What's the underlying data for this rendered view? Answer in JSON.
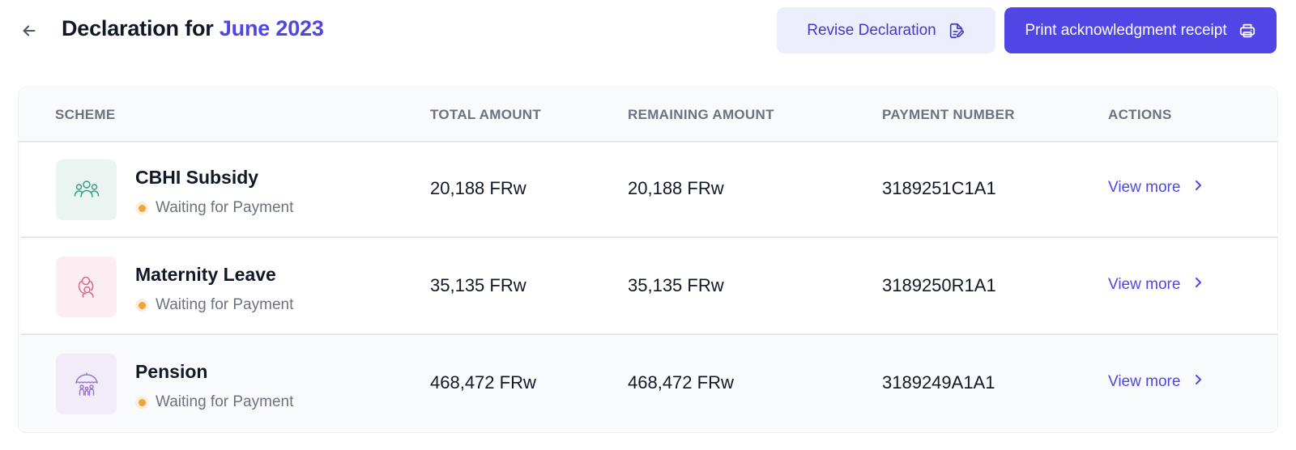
{
  "header": {
    "title_prefix": "Declaration for",
    "title_period": "June 2023",
    "revise_label": "Revise Declaration",
    "print_label": "Print acknowledgment receipt"
  },
  "table": {
    "columns": {
      "scheme": "SCHEME",
      "total": "TOTAL AMOUNT",
      "remaining": "REMAINING AMOUNT",
      "payment": "PAYMENT NUMBER",
      "actions": "ACTIONS"
    },
    "rows": [
      {
        "scheme": "CBHI Subsidy",
        "icon": "people-group-icon",
        "icon_bg": "#eaf5f2",
        "icon_color": "#3c9b82",
        "status": "Waiting for Payment",
        "total": "20,188 FRw",
        "remaining": "20,188 FRw",
        "payment_number": "3189251C1A1",
        "action": "View more"
      },
      {
        "scheme": "Maternity Leave",
        "icon": "mother-baby-icon",
        "icon_bg": "#fcedf3",
        "icon_color": "#d9678f",
        "status": "Waiting for Payment",
        "total": "35,135 FRw",
        "remaining": "35,135 FRw",
        "payment_number": "3189250R1A1",
        "action": "View more"
      },
      {
        "scheme": "Pension",
        "icon": "umbrella-family-icon",
        "icon_bg": "#f1ecf8",
        "icon_color": "#9a76d0",
        "status": "Waiting for Payment",
        "total": "468,472 FRw",
        "remaining": "468,472 FRw",
        "payment_number": "3189249A1A1",
        "action": "View more"
      }
    ]
  },
  "colors": {
    "accent": "#4f46e5",
    "status_pending": "#f0a43a"
  }
}
